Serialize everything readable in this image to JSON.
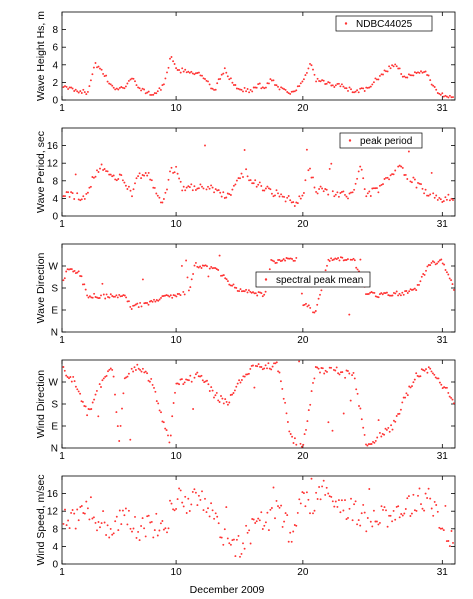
{
  "xlabel": "December 2009",
  "x_ticks": [
    "1",
    "10",
    "20",
    "31"
  ],
  "x_tick_values": [
    1,
    10,
    20,
    31
  ],
  "xlim": [
    1,
    32
  ],
  "marker_color": "#ff3333",
  "chart_data": [
    {
      "type": "scatter",
      "ylabel": "Wave Height Hs, m",
      "ylim": [
        0,
        10
      ],
      "y_ticks": [
        "0",
        "2",
        "4",
        "6",
        "8"
      ],
      "y_tick_values": [
        0,
        2,
        4,
        6,
        8
      ],
      "legend": {
        "label": "NDBC44025",
        "position": "top-right"
      },
      "series": [
        {
          "name": "NDBC44025",
          "shape": "wave_height"
        }
      ]
    },
    {
      "type": "scatter",
      "ylabel": "Wave Period, sec",
      "ylim": [
        0,
        20
      ],
      "y_ticks": [
        "0",
        "4",
        "8",
        "12",
        "16"
      ],
      "y_tick_values": [
        0,
        4,
        8,
        12,
        16
      ],
      "legend": {
        "label": "peak period",
        "position": "top-right"
      },
      "series": [
        {
          "name": "peak period",
          "shape": "wave_period"
        }
      ]
    },
    {
      "type": "scatter",
      "ylabel": "Wave Direction",
      "ylim": [
        0,
        360
      ],
      "y_ticks": [
        "N",
        "E",
        "S",
        "W"
      ],
      "y_tick_values": [
        0,
        90,
        180,
        270
      ],
      "legend": {
        "label": "spectral peak mean",
        "position": "center-right"
      },
      "series": [
        {
          "name": "spectral peak mean",
          "shape": "wave_direction"
        }
      ]
    },
    {
      "type": "scatter",
      "ylabel": "Wind Direction",
      "ylim": [
        0,
        360
      ],
      "y_ticks": [
        "N",
        "E",
        "S",
        "W"
      ],
      "y_tick_values": [
        0,
        90,
        180,
        270
      ],
      "legend": null,
      "series": [
        {
          "shape": "wind_direction"
        }
      ]
    },
    {
      "type": "scatter",
      "ylabel": "Wind Speed, m/sec",
      "ylim": [
        0,
        20
      ],
      "y_ticks": [
        "0",
        "4",
        "8",
        "12",
        "16"
      ],
      "y_tick_values": [
        0,
        4,
        8,
        12,
        16
      ],
      "legend": null,
      "series": [
        {
          "shape": "wind_speed"
        }
      ]
    }
  ]
}
